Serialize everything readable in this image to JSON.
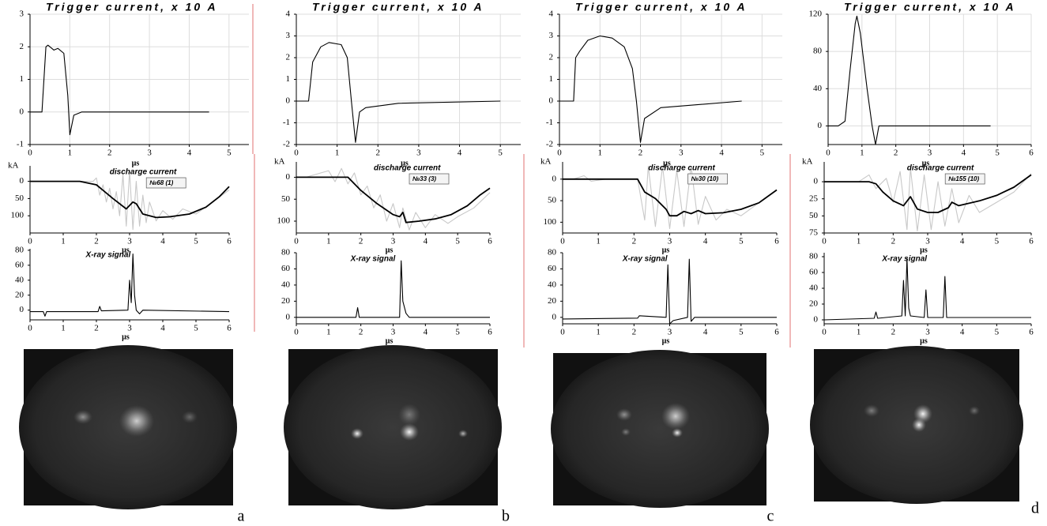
{
  "chart_data": [
    {
      "type": "line",
      "title": "Trigger current, x 10 A",
      "xlabel": "µs",
      "xlim": [
        0,
        5.5
      ],
      "xticks": [
        0,
        1,
        2,
        3,
        4,
        5
      ],
      "ylim": [
        -1,
        3
      ],
      "yticks": [
        -1,
        0,
        1,
        2,
        3
      ],
      "grid": true,
      "series": [
        {
          "color": "#000000",
          "x": [
            0,
            0.3,
            0.4,
            0.45,
            0.6,
            0.7,
            0.85,
            0.95,
            1.0,
            1.1,
            1.3,
            4.5
          ],
          "values": [
            0,
            0,
            2,
            2.05,
            1.9,
            1.95,
            1.8,
            0.5,
            -0.7,
            -0.1,
            0,
            0
          ]
        }
      ]
    },
    {
      "type": "line",
      "title": "discharge current",
      "ylabel": "kA",
      "xlabel": "µs",
      "annotation": "№68 (1)",
      "xlim": [
        0,
        6
      ],
      "xticks": [
        0,
        1,
        2,
        3,
        4,
        5,
        6
      ],
      "ylim": [
        150,
        -45
      ],
      "yticks": [
        0,
        50,
        100
      ],
      "grid": false,
      "series": [
        {
          "color": "#c8c8c8",
          "x": [
            0.3,
            1.0,
            1.9,
            2.0,
            2.1,
            2.2,
            2.3,
            2.4,
            2.5,
            2.6,
            2.7,
            2.8,
            2.9,
            3.0,
            3.1,
            3.2,
            3.3,
            3.4,
            3.5,
            3.6,
            3.8,
            4.0,
            4.3,
            4.6,
            5.0,
            5.5,
            6
          ],
          "values": [
            0,
            0,
            0,
            -10,
            40,
            10,
            60,
            20,
            80,
            30,
            100,
            -20,
            130,
            -30,
            140,
            0,
            130,
            40,
            120,
            60,
            115,
            85,
            110,
            80,
            95,
            60,
            25
          ]
        },
        {
          "color": "#000000",
          "x": [
            0,
            1.5,
            2.0,
            2.5,
            2.9,
            3.1,
            3.2,
            3.4,
            3.8,
            4.2,
            4.8,
            5.3,
            5.7,
            6
          ],
          "values": [
            0,
            0,
            10,
            50,
            80,
            60,
            65,
            95,
            105,
            103,
            95,
            75,
            45,
            15
          ]
        }
      ]
    },
    {
      "type": "line",
      "title": "X-ray signal",
      "xlabel": "µs",
      "xlim": [
        0,
        6
      ],
      "xticks": [
        0,
        1,
        2,
        3,
        4,
        5,
        6
      ],
      "ylim": [
        -13,
        82
      ],
      "yticks": [
        0,
        20,
        40,
        60,
        80
      ],
      "grid": false,
      "series": [
        {
          "color": "#000000",
          "x": [
            0,
            0.4,
            0.45,
            0.5,
            2.05,
            2.1,
            2.15,
            2.95,
            3.0,
            3.05,
            3.1,
            3.15,
            3.2,
            3.3,
            3.4,
            6
          ],
          "values": [
            -2,
            -2,
            -8,
            -2,
            -2,
            5,
            -1,
            0,
            40,
            10,
            75,
            20,
            0,
            -5,
            0,
            -2
          ]
        }
      ]
    },
    {
      "type": "line",
      "title": "Trigger current, x 10 A",
      "xlabel": "µs",
      "xlim": [
        0,
        5.5
      ],
      "xticks": [
        0,
        1,
        2,
        3,
        4,
        5
      ],
      "ylim": [
        -2,
        4
      ],
      "yticks": [
        -2,
        -1,
        0,
        1,
        2,
        3,
        4
      ],
      "grid": true,
      "series": [
        {
          "color": "#000000",
          "x": [
            0,
            0.3,
            0.4,
            0.6,
            0.8,
            1.1,
            1.25,
            1.35,
            1.45,
            1.55,
            1.7,
            2.5,
            5
          ],
          "values": [
            0,
            0,
            1.8,
            2.5,
            2.7,
            2.6,
            2.0,
            0,
            -1.9,
            -0.5,
            -0.3,
            -0.1,
            0
          ]
        }
      ]
    },
    {
      "type": "line",
      "title": "discharge current",
      "ylabel": "kA",
      "xlabel": "µs",
      "annotation": "№33 (3)",
      "xlim": [
        0,
        6
      ],
      "xticks": [
        0,
        1,
        2,
        3,
        4,
        5,
        6
      ],
      "ylim": [
        127,
        -35
      ],
      "yticks": [
        0,
        50,
        100
      ],
      "grid": false,
      "series": [
        {
          "color": "#c8c8c8",
          "x": [
            0.3,
            1.0,
            1.2,
            1.4,
            1.6,
            1.8,
            2.0,
            2.2,
            2.4,
            2.6,
            2.8,
            3.0,
            3.2,
            3.3,
            3.5,
            3.7,
            4.0,
            4.3,
            4.7,
            5.0,
            5.5,
            6
          ],
          "values": [
            0,
            -15,
            10,
            -20,
            15,
            -10,
            40,
            20,
            70,
            40,
            100,
            60,
            115,
            70,
            120,
            80,
            115,
            85,
            105,
            90,
            70,
            35
          ]
        },
        {
          "color": "#000000",
          "x": [
            0,
            1.6,
            1.8,
            2.0,
            2.5,
            3.0,
            3.2,
            3.3,
            3.4,
            3.8,
            4.3,
            4.8,
            5.3,
            5.7,
            6
          ],
          "values": [
            0,
            0,
            15,
            30,
            60,
            85,
            90,
            80,
            103,
            100,
            95,
            85,
            65,
            40,
            25
          ]
        }
      ]
    },
    {
      "type": "line",
      "title": "X-ray signal",
      "xlabel": "µs",
      "xlim": [
        0,
        6
      ],
      "xticks": [
        0,
        1,
        2,
        3,
        4,
        5,
        6
      ],
      "ylim": [
        -8,
        80
      ],
      "yticks": [
        0,
        20,
        40,
        60,
        80
      ],
      "grid": false,
      "series": [
        {
          "color": "#000000",
          "x": [
            0,
            1.85,
            1.9,
            1.95,
            3.2,
            3.25,
            3.3,
            3.4,
            3.5,
            6
          ],
          "values": [
            0,
            0,
            12,
            0,
            0,
            70,
            20,
            5,
            0,
            0
          ]
        }
      ]
    },
    {
      "type": "line",
      "title": "Trigger current, x 10 A",
      "xlabel": "µs",
      "xlim": [
        0,
        5.5
      ],
      "xticks": [
        0,
        1,
        2,
        3,
        4,
        5
      ],
      "ylim": [
        -2,
        4
      ],
      "yticks": [
        -2,
        -1,
        0,
        1,
        2,
        3,
        4
      ],
      "grid": true,
      "series": [
        {
          "color": "#000000",
          "x": [
            0,
            0.35,
            0.4,
            0.5,
            0.7,
            1.0,
            1.3,
            1.6,
            1.8,
            1.9,
            2.0,
            2.1,
            2.5,
            4.5
          ],
          "values": [
            0,
            0,
            2,
            2.3,
            2.8,
            3,
            2.9,
            2.5,
            1.5,
            0,
            -1.9,
            -0.8,
            -0.3,
            0
          ]
        }
      ]
    },
    {
      "type": "line",
      "title": "discharge current",
      "ylabel": "kA",
      "xlabel": "µs",
      "annotation": "№30 (10)",
      "xlim": [
        0,
        6
      ],
      "xticks": [
        0,
        1,
        2,
        3,
        4,
        5,
        6
      ],
      "ylim": [
        125,
        -40
      ],
      "yticks": [
        0,
        50,
        100
      ],
      "grid": false,
      "series": [
        {
          "color": "#c8c8c8",
          "x": [
            0.3,
            0.6,
            0.8,
            1.2,
            2.1,
            2.3,
            2.4,
            2.6,
            2.8,
            3.0,
            3.2,
            3.4,
            3.6,
            3.8,
            4.0,
            4.3,
            4.6,
            5.0,
            5.5,
            6
          ],
          "values": [
            0,
            -8,
            5,
            0,
            0,
            95,
            -30,
            110,
            -30,
            115,
            -20,
            110,
            -30,
            105,
            40,
            95,
            70,
            85,
            55,
            25
          ]
        },
        {
          "color": "#000000",
          "x": [
            0,
            2.1,
            2.3,
            2.6,
            2.9,
            3.0,
            3.2,
            3.4,
            3.6,
            3.8,
            4.0,
            4.5,
            5.0,
            5.5,
            6
          ],
          "values": [
            0,
            0,
            30,
            45,
            70,
            85,
            85,
            75,
            80,
            73,
            80,
            78,
            70,
            55,
            25
          ]
        }
      ]
    },
    {
      "type": "line",
      "title": "X-ray signal",
      "xlabel": "µs",
      "xlim": [
        0,
        6
      ],
      "xticks": [
        0,
        1,
        2,
        3,
        4,
        5,
        6
      ],
      "ylim": [
        -8,
        80
      ],
      "yticks": [
        0,
        20,
        40,
        60,
        80
      ],
      "grid": false,
      "series": [
        {
          "color": "#000000",
          "x": [
            0,
            2.1,
            2.15,
            2.9,
            2.95,
            3.0,
            3.1,
            3.5,
            3.55,
            3.6,
            3.7,
            6
          ],
          "values": [
            -2,
            -1,
            2,
            0,
            65,
            -8,
            -4,
            0,
            72,
            -5,
            0,
            0
          ]
        }
      ]
    },
    {
      "type": "line",
      "title": "Trigger current, x 10 A",
      "xlabel": "µs",
      "xlim": [
        0,
        6
      ],
      "xticks": [
        0,
        1,
        2,
        3,
        4,
        5,
        6
      ],
      "ylim": [
        -20,
        120
      ],
      "yticks": [
        0,
        40,
        80,
        120
      ],
      "grid": true,
      "series": [
        {
          "color": "#000000",
          "x": [
            0,
            0.3,
            0.5,
            0.65,
            0.8,
            0.85,
            0.95,
            1.15,
            1.3,
            1.4,
            1.5,
            4.8
          ],
          "values": [
            0,
            0,
            5,
            60,
            110,
            118,
            100,
            40,
            0,
            -20,
            0,
            0
          ]
        }
      ]
    },
    {
      "type": "line",
      "title": "discharge current",
      "ylabel": "kA",
      "xlabel": "µs",
      "annotation": "№155 (10)",
      "xlim": [
        0,
        6
      ],
      "xticks": [
        0,
        1,
        2,
        3,
        4,
        5,
        6
      ],
      "ylim": [
        75,
        -29
      ],
      "yticks": [
        0,
        25,
        50,
        75
      ],
      "grid": false,
      "series": [
        {
          "color": "#c8c8c8",
          "x": [
            0.3,
            1.0,
            1.3,
            1.5,
            1.8,
            2.0,
            2.2,
            2.4,
            2.5,
            2.7,
            2.9,
            3.1,
            3.3,
            3.5,
            3.7,
            3.9,
            4.2,
            4.5,
            5.0,
            5.5,
            6
          ],
          "values": [
            0,
            0,
            -10,
            10,
            -5,
            30,
            -15,
            70,
            -20,
            72,
            -10,
            70,
            0,
            65,
            10,
            60,
            20,
            45,
            30,
            15,
            -12
          ]
        },
        {
          "color": "#000000",
          "x": [
            0,
            1.3,
            1.5,
            1.7,
            2.0,
            2.3,
            2.5,
            2.7,
            3.0,
            3.3,
            3.6,
            3.7,
            3.9,
            4.5,
            5.0,
            5.5,
            6
          ],
          "values": [
            0,
            0,
            3,
            15,
            28,
            35,
            22,
            40,
            45,
            45,
            38,
            30,
            35,
            28,
            20,
            8,
            -10
          ]
        }
      ]
    },
    {
      "type": "line",
      "title": "X-ray signal",
      "xlabel": "µs",
      "xlim": [
        0,
        6
      ],
      "xticks": [
        0,
        1,
        2,
        3,
        4,
        5,
        6
      ],
      "ylim": [
        -5,
        85
      ],
      "yticks": [
        0,
        20,
        40,
        60,
        80
      ],
      "grid": false,
      "series": [
        {
          "color": "#000000",
          "x": [
            0,
            1.45,
            1.5,
            1.55,
            2.25,
            2.3,
            2.35,
            2.4,
            2.45,
            2.5,
            2.9,
            2.95,
            3.0,
            3.45,
            3.5,
            3.55,
            6
          ],
          "values": [
            0,
            2,
            10,
            2,
            5,
            50,
            5,
            78,
            15,
            5,
            3,
            38,
            3,
            3,
            55,
            3,
            3
          ]
        }
      ]
    }
  ],
  "panel_labels": [
    "a",
    "b",
    "c",
    "d"
  ]
}
